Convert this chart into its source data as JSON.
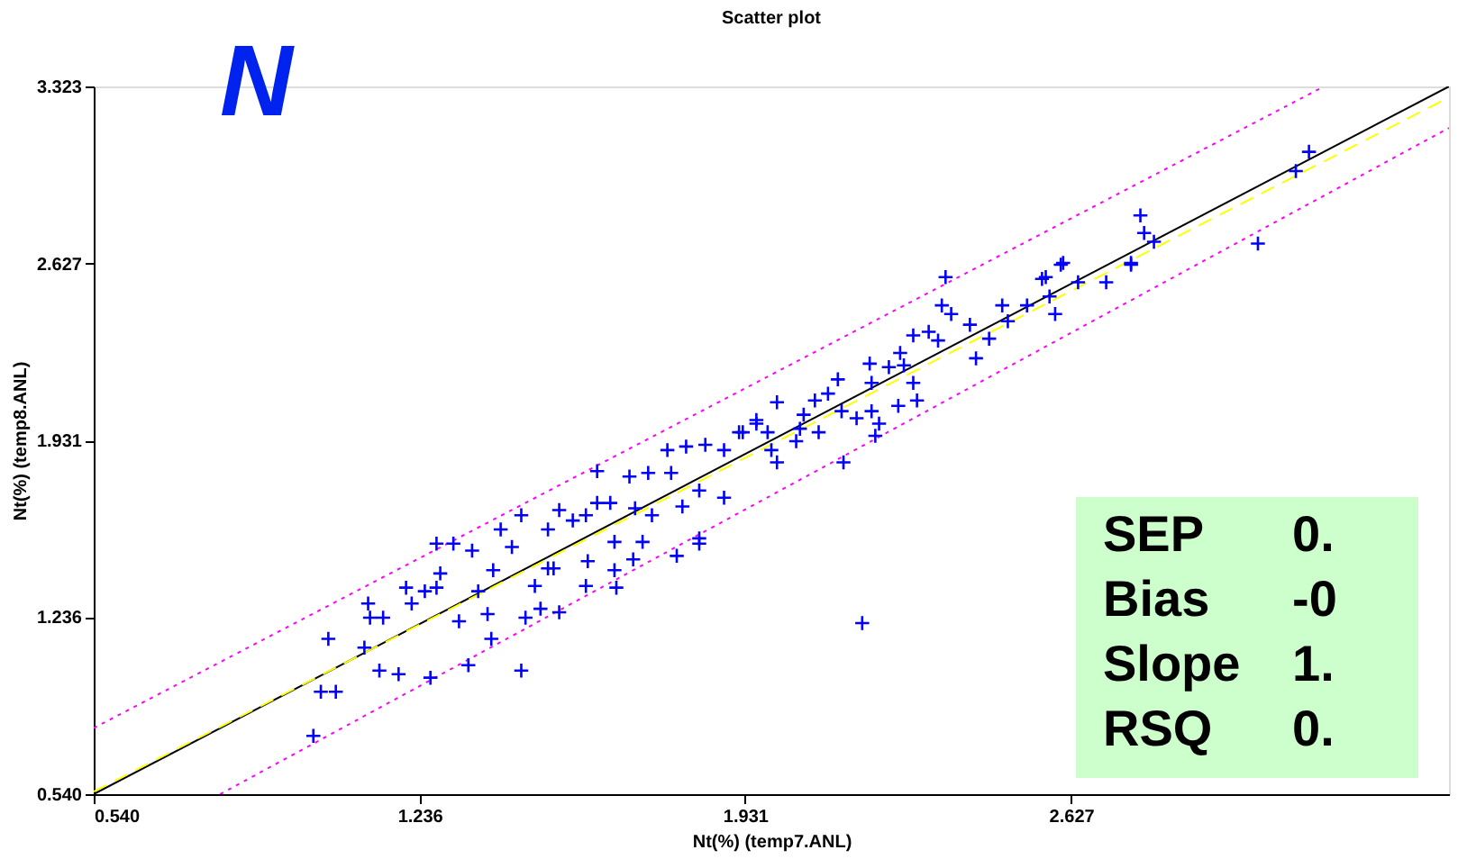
{
  "chart_data": {
    "type": "scatter",
    "title": "Scatter plot",
    "xlabel": "Nt(%) (temp7.ANL)",
    "ylabel": "Nt(%) (temp8.ANL)",
    "xlim": [
      0.54,
      3.434
    ],
    "ylim": [
      0.54,
      3.323
    ],
    "xticks": [
      {
        "value": 0.54,
        "label": "0.540"
      },
      {
        "value": 1.236,
        "label": "1.236"
      },
      {
        "value": 1.931,
        "label": "1.931"
      },
      {
        "value": 2.627,
        "label": "2.627"
      }
    ],
    "yticks": [
      {
        "value": 0.54,
        "label": "0.540"
      },
      {
        "value": 1.236,
        "label": "1.236"
      },
      {
        "value": 1.931,
        "label": "1.931"
      },
      {
        "value": 2.627,
        "label": "2.627"
      },
      {
        "value": 3.323,
        "label": "3.323"
      }
    ],
    "grid": false,
    "annotations": [
      "N",
      "SEP 0.",
      "Bias -0",
      "Slope 1.",
      "RSQ 0."
    ],
    "series": [
      {
        "type": "line",
        "color": "#000000",
        "marker": "none",
        "line_style": "solid",
        "x": [
          0.54,
          3.434
        ],
        "values": [
          0.54,
          3.323
        ]
      },
      {
        "type": "line",
        "color": "#ffff00",
        "marker": "none",
        "line_style": "dashed",
        "x": [
          0.54,
          3.434
        ],
        "values": [
          0.55,
          3.28
        ]
      },
      {
        "type": "line",
        "color": "#ff00ff",
        "marker": "none",
        "line_style": "dotted",
        "x": [
          0.54,
          3.16
        ],
        "values": [
          0.8,
          3.316
        ]
      },
      {
        "type": "line",
        "color": "#ff00ff",
        "marker": "none",
        "line_style": "dotted",
        "x": [
          0.81,
          3.434
        ],
        "values": [
          0.54,
          3.16
        ]
      },
      {
        "color": "#0000ff",
        "marker": "cross",
        "x": [
          1.009,
          1.025,
          1.057,
          1.041,
          1.126,
          1.13,
          1.158,
          1.118,
          1.15,
          1.191,
          1.259,
          1.34,
          1.453,
          1.207,
          1.247,
          1.272,
          1.219,
          1.28,
          1.308,
          1.272,
          1.348,
          1.409,
          1.393,
          1.361,
          1.32,
          1.389,
          1.381,
          1.462,
          1.494,
          1.534,
          1.433,
          1.453,
          1.534,
          1.51,
          1.563,
          1.591,
          1.615,
          1.643,
          1.615,
          1.684,
          1.724,
          1.696,
          1.732,
          1.652,
          1.595,
          1.652,
          1.692,
          1.712,
          1.591,
          1.656,
          1.773,
          1.765,
          1.805,
          1.846,
          1.886,
          1.918,
          1.955,
          1.886,
          1.833,
          1.797,
          1.833,
          1.785,
          1.522,
          1.482,
          1.51,
          2.359,
          2.351,
          2.371,
          2.29,
          2.323,
          2.343,
          2.411,
          2.452,
          2.424,
          2.48,
          2.533,
          2.565,
          2.605,
          2.642,
          2.702,
          2.755,
          2.593,
          2.492,
          2.262,
          2.27,
          2.238,
          2.197,
          2.201,
          2.29,
          2.298,
          2.258,
          2.201,
          2.217,
          2.209,
          2.169,
          2.137,
          2.129,
          2.108,
          2.08,
          2.056,
          1.999,
          2.048,
          2.088,
          2.141,
          2.04,
          1.979,
          1.955,
          1.926,
          1.987,
          1.999,
          1.833,
          2.181,
          3.135,
          3.107,
          3.026,
          2.775,
          2.783,
          2.804,
          2.755,
          2.61,
          2.573,
          2.581
        ],
        "values": [
          0.769,
          0.943,
          0.943,
          1.151,
          1.29,
          1.234,
          1.234,
          1.116,
          1.026,
          1.012,
          0.998,
          1.047,
          1.026,
          1.352,
          1.338,
          1.352,
          1.29,
          1.408,
          1.525,
          1.525,
          1.498,
          1.581,
          1.421,
          1.338,
          1.22,
          1.151,
          1.248,
          1.234,
          1.269,
          1.255,
          1.512,
          1.637,
          1.657,
          1.581,
          1.616,
          1.637,
          1.685,
          1.685,
          1.81,
          1.789,
          1.803,
          1.664,
          1.637,
          1.532,
          1.456,
          1.421,
          1.463,
          1.532,
          1.359,
          1.352,
          1.803,
          1.893,
          1.907,
          1.914,
          1.893,
          1.963,
          1.997,
          1.706,
          1.734,
          1.671,
          1.525,
          1.477,
          1.428,
          1.359,
          1.428,
          2.573,
          2.462,
          2.428,
          2.344,
          2.358,
          2.324,
          2.386,
          2.331,
          2.254,
          2.462,
          2.462,
          2.566,
          2.622,
          2.553,
          2.553,
          2.622,
          2.428,
          2.4,
          2.275,
          2.226,
          2.219,
          2.233,
          2.157,
          2.157,
          2.088,
          2.067,
          2.046,
          1.997,
          1.949,
          2.018,
          2.046,
          2.171,
          2.115,
          2.088,
          2.032,
          2.081,
          1.977,
          1.963,
          1.845,
          1.928,
          1.963,
          2.011,
          1.963,
          1.893,
          1.845,
          1.546,
          1.213,
          3.066,
          2.99,
          2.705,
          2.816,
          2.747,
          2.712,
          2.629,
          2.629,
          2.573,
          2.497
        ]
      }
    ]
  }
}
